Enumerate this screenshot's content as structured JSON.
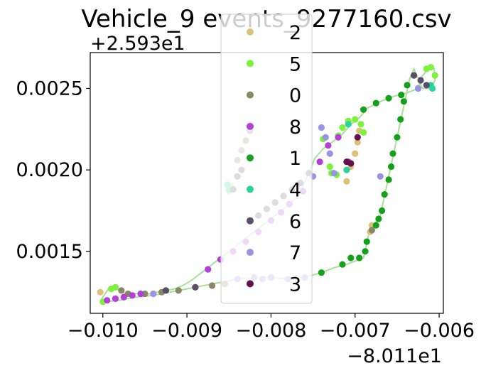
{
  "chart_data": {
    "type": "scatter",
    "title": "Vehicle_9 events_9277160.csv",
    "x_offset_label": "−8.011e1",
    "y_offset_label": "+2.593e1",
    "xlim": [
      -10.15,
      -5.95
    ],
    "ylim": [
      1.12,
      2.72
    ],
    "x_ticks": [
      -10,
      -9,
      -8,
      -7,
      -6
    ],
    "x_tick_labels": [
      "−0.010",
      "−0.009",
      "−0.008",
      "−0.007",
      "−0.006"
    ],
    "y_ticks": [
      1.5,
      2.0,
      2.5
    ],
    "y_tick_labels": [
      "0.0015",
      "0.0020",
      "0.0025"
    ],
    "legend": {
      "placement": "center",
      "entries": [
        {
          "label": "2",
          "color": "#dcc278"
        },
        {
          "label": "5",
          "color": "#7cf23c"
        },
        {
          "label": "0",
          "color": "#888866"
        },
        {
          "label": "8",
          "color": "#b33ed9"
        },
        {
          "label": "1",
          "color": "#14a019"
        },
        {
          "label": "4",
          "color": "#2ad49c"
        },
        {
          "label": "6",
          "color": "#5a4e68"
        },
        {
          "label": "7",
          "color": "#9a92e2"
        },
        {
          "label": "3",
          "color": "#62104e"
        }
      ]
    },
    "path": [
      [
        -10.0,
        1.19
      ],
      [
        -9.8,
        1.2
      ],
      [
        -9.6,
        1.22
      ],
      [
        -9.4,
        1.23
      ],
      [
        -9.2,
        1.25
      ],
      [
        -9.0,
        1.27
      ],
      [
        -8.8,
        1.29
      ],
      [
        -8.6,
        1.31
      ],
      [
        -8.4,
        1.33
      ],
      [
        -8.2,
        1.34
      ],
      [
        -8.0,
        1.34
      ],
      [
        -7.8,
        1.33
      ],
      [
        -7.6,
        1.34
      ],
      [
        -7.4,
        1.37
      ],
      [
        -7.25,
        1.4
      ],
      [
        -7.1,
        1.42
      ],
      [
        -7.0,
        1.44
      ],
      [
        -6.9,
        1.46
      ],
      [
        -6.88,
        1.5
      ],
      [
        -6.86,
        1.55
      ],
      [
        -6.84,
        1.6
      ],
      [
        -6.82,
        1.63
      ],
      [
        -6.76,
        1.67
      ],
      [
        -6.7,
        1.72
      ],
      [
        -6.65,
        1.84
      ],
      [
        -6.6,
        1.96
      ],
      [
        -6.55,
        2.08
      ],
      [
        -6.5,
        2.2
      ],
      [
        -6.45,
        2.32
      ],
      [
        -6.4,
        2.44
      ],
      [
        -6.35,
        2.56
      ],
      [
        -6.3,
        2.62
      ],
      [
        -6.2,
        2.5
      ],
      [
        -6.1,
        2.5
      ],
      [
        -6.05,
        2.55
      ],
      [
        -6.06,
        2.62
      ],
      [
        -6.1,
        2.63
      ],
      [
        -6.15,
        2.61
      ],
      [
        -6.22,
        2.56
      ],
      [
        -6.25,
        2.5
      ],
      [
        -6.3,
        2.49
      ],
      [
        -6.4,
        2.47
      ],
      [
        -6.55,
        2.45
      ],
      [
        -6.7,
        2.42
      ],
      [
        -6.85,
        2.38
      ],
      [
        -6.95,
        2.32
      ],
      [
        -7.05,
        2.28
      ],
      [
        -7.15,
        2.22
      ],
      [
        -7.25,
        2.18
      ],
      [
        -7.38,
        2.13
      ],
      [
        -7.48,
        2.07
      ],
      [
        -7.55,
        1.98
      ],
      [
        -7.62,
        1.9
      ],
      [
        -7.68,
        1.84
      ],
      [
        -7.76,
        1.8
      ],
      [
        -7.85,
        1.76
      ],
      [
        -7.95,
        1.72
      ],
      [
        -8.05,
        1.68
      ],
      [
        -8.15,
        1.64
      ],
      [
        -8.25,
        1.6
      ],
      [
        -8.35,
        1.56
      ],
      [
        -8.45,
        1.52
      ],
      [
        -8.55,
        1.48
      ],
      [
        -8.65,
        1.44
      ],
      [
        -8.75,
        1.4
      ],
      [
        -8.85,
        1.36
      ],
      [
        -8.95,
        1.32
      ],
      [
        -9.05,
        1.29
      ],
      [
        -9.15,
        1.27
      ],
      [
        -9.25,
        1.26
      ],
      [
        -9.35,
        1.25
      ],
      [
        -9.45,
        1.24
      ],
      [
        -9.55,
        1.24
      ],
      [
        -9.65,
        1.24
      ],
      [
        -9.72,
        1.24
      ],
      [
        -9.8,
        1.26
      ],
      [
        -9.87,
        1.28
      ],
      [
        -9.92,
        1.28
      ],
      [
        -9.96,
        1.25
      ],
      [
        -10.0,
        1.22
      ],
      [
        -10.02,
        1.2
      ]
    ],
    "clusters": [
      {
        "label": "2",
        "points": [
          [
            -7.1,
            1.93
          ],
          [
            -7.05,
            2.02
          ],
          [
            -7.0,
            2.1
          ],
          [
            -6.97,
            2.17
          ],
          [
            -6.95,
            2.24
          ],
          [
            -6.82,
            1.62
          ],
          [
            -6.8,
            1.66
          ],
          [
            -10.03,
            1.25
          ]
        ]
      },
      {
        "label": "5",
        "points": [
          [
            -7.2,
            2.21
          ],
          [
            -7.15,
            2.26
          ],
          [
            -7.08,
            2.3
          ],
          [
            -7.0,
            2.31
          ],
          [
            -6.93,
            2.28
          ],
          [
            -6.9,
            2.23
          ],
          [
            -7.3,
            2.02
          ],
          [
            -7.28,
            1.98
          ],
          [
            -7.22,
            1.97
          ],
          [
            -6.1,
            2.63
          ],
          [
            -6.05,
            2.58
          ],
          [
            -6.15,
            2.62
          ],
          [
            -10.0,
            1.19
          ],
          [
            -9.9,
            1.27
          ],
          [
            -9.85,
            1.28
          ],
          [
            -8.5,
            1.87
          ],
          [
            -8.48,
            1.9
          ],
          [
            -7.38,
            2.19
          ]
        ]
      },
      {
        "label": "0",
        "points": [
          [
            -8.4,
            2.06
          ],
          [
            -8.35,
            2.12
          ],
          [
            -8.3,
            2.18
          ],
          [
            -8.25,
            2.24
          ],
          [
            -9.78,
            1.26
          ],
          [
            -9.7,
            1.24
          ],
          [
            -9.5,
            1.24
          ],
          [
            -9.3,
            1.25
          ],
          [
            -9.1,
            1.26
          ],
          [
            -8.9,
            1.28
          ],
          [
            -8.7,
            1.29
          ],
          [
            -8.55,
            1.3
          ],
          [
            -6.8,
            1.63
          ],
          [
            -6.25,
            2.5
          ]
        ]
      },
      {
        "label": "8",
        "points": [
          [
            -9.95,
            1.2
          ],
          [
            -9.85,
            1.21
          ],
          [
            -9.75,
            1.22
          ],
          [
            -9.65,
            1.23
          ],
          [
            -9.55,
            1.24
          ],
          [
            -8.75,
            1.39
          ],
          [
            -8.6,
            1.45
          ],
          [
            -8.45,
            1.5
          ],
          [
            -8.3,
            1.56
          ],
          [
            -8.15,
            1.62
          ],
          [
            -8.0,
            1.69
          ],
          [
            -7.88,
            1.74
          ],
          [
            -7.78,
            1.79
          ],
          [
            -7.62,
            1.87
          ],
          [
            -7.42,
            2.05
          ],
          [
            -7.32,
            2.15
          ],
          [
            -7.2,
            2.2
          ],
          [
            -7.08,
            2.05
          ]
        ]
      },
      {
        "label": "1",
        "points": [
          [
            -6.68,
            1.75
          ],
          [
            -6.65,
            1.85
          ],
          [
            -6.6,
            1.94
          ],
          [
            -6.57,
            2.02
          ],
          [
            -6.55,
            2.1
          ],
          [
            -6.5,
            2.2
          ],
          [
            -6.46,
            2.31
          ],
          [
            -6.42,
            2.42
          ],
          [
            -6.38,
            2.52
          ],
          [
            -7.05,
            1.46
          ],
          [
            -6.95,
            1.46
          ],
          [
            -6.88,
            1.5
          ],
          [
            -6.86,
            1.56
          ],
          [
            -6.75,
            1.66
          ],
          [
            -6.72,
            1.7
          ],
          [
            -6.9,
            2.37
          ],
          [
            -6.75,
            2.41
          ],
          [
            -6.6,
            2.44
          ],
          [
            -6.45,
            2.46
          ],
          [
            -7.15,
            1.42
          ],
          [
            -7.4,
            1.37
          ]
        ]
      },
      {
        "label": "4",
        "points": [
          [
            -8.5,
            1.88
          ],
          [
            -8.52,
            1.91
          ],
          [
            -7.1,
            2.0
          ],
          [
            -7.08,
            2.28
          ],
          [
            -6.1,
            2.52
          ],
          [
            -6.08,
            2.5
          ]
        ]
      },
      {
        "label": "6",
        "points": [
          [
            -8.45,
            1.88
          ],
          [
            -8.4,
            1.96
          ],
          [
            -8.35,
            2.0
          ],
          [
            -8.15,
            1.72
          ],
          [
            -8.05,
            1.76
          ],
          [
            -7.95,
            1.8
          ],
          [
            -7.85,
            1.84
          ],
          [
            -7.75,
            1.88
          ],
          [
            -7.65,
            1.92
          ],
          [
            -7.55,
            1.98
          ],
          [
            -6.3,
            2.58
          ],
          [
            -6.22,
            2.55
          ],
          [
            -6.15,
            2.52
          ],
          [
            -8.9,
            1.28
          ],
          [
            -9.25,
            1.26
          ]
        ]
      },
      {
        "label": "7",
        "points": [
          [
            -8.2,
            1.34
          ],
          [
            -8.0,
            1.34
          ],
          [
            -7.8,
            1.33
          ],
          [
            -7.6,
            1.34
          ],
          [
            -8.1,
            1.33
          ],
          [
            -7.25,
            1.98
          ],
          [
            -7.3,
            2.1
          ],
          [
            -7.35,
            2.2
          ],
          [
            -7.4,
            2.26
          ],
          [
            -7.5,
            1.96
          ],
          [
            -6.7,
            1.96
          ],
          [
            -6.25,
            2.5
          ],
          [
            -9.4,
            1.24
          ],
          [
            -8.4,
            1.33
          ]
        ]
      },
      {
        "label": "3",
        "points": [
          [
            -7.1,
            2.05
          ],
          [
            -6.97,
            2.2
          ],
          [
            -7.05,
            2.04
          ]
        ]
      }
    ]
  }
}
